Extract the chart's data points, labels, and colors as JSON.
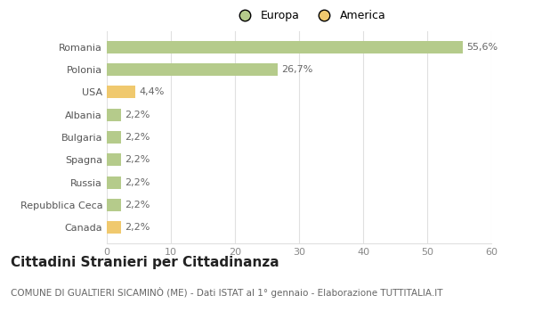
{
  "categories": [
    "Canada",
    "Repubblica Ceca",
    "Russia",
    "Spagna",
    "Bulgaria",
    "Albania",
    "USA",
    "Polonia",
    "Romania"
  ],
  "values": [
    2.2,
    2.2,
    2.2,
    2.2,
    2.2,
    2.2,
    4.4,
    26.7,
    55.6
  ],
  "labels": [
    "2,2%",
    "2,2%",
    "2,2%",
    "2,2%",
    "2,2%",
    "2,2%",
    "4,4%",
    "26,7%",
    "55,6%"
  ],
  "colors": [
    "#f0c96e",
    "#b5cb8b",
    "#b5cb8b",
    "#b5cb8b",
    "#b5cb8b",
    "#b5cb8b",
    "#f0c96e",
    "#b5cb8b",
    "#b5cb8b"
  ],
  "legend_labels": [
    "Europa",
    "America"
  ],
  "legend_colors": [
    "#b5cb8b",
    "#f0c96e"
  ],
  "title": "Cittadini Stranieri per Cittadinanza",
  "subtitle": "COMUNE DI GUALTIERI SICAMINÒ (ME) - Dati ISTAT al 1° gennaio - Elaborazione TUTTITALIA.IT",
  "xlim": [
    0,
    60
  ],
  "xticks": [
    0,
    10,
    20,
    30,
    40,
    50,
    60
  ],
  "bg_color": "#ffffff",
  "grid_color": "#e0e0e0",
  "bar_height": 0.55,
  "title_fontsize": 11,
  "subtitle_fontsize": 7.5,
  "label_fontsize": 8,
  "tick_fontsize": 8,
  "legend_fontsize": 9
}
